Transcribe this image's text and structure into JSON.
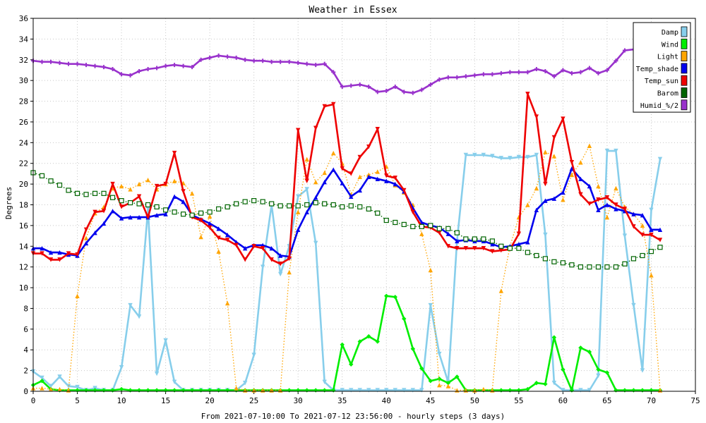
{
  "chart_data": {
    "type": "line",
    "title": "Weather in Essex",
    "xlabel": "From 2021-07-10:00 To 2021-07-12 23:56:00 - hourly steps (3 days)",
    "ylabel": "Degrees",
    "xlim": [
      0,
      75
    ],
    "ylim": [
      0,
      36
    ],
    "x_ticks": [
      0,
      5,
      10,
      15,
      20,
      25,
      30,
      35,
      40,
      45,
      50,
      55,
      60,
      65,
      70,
      75
    ],
    "y_ticks": [
      0,
      2,
      4,
      6,
      8,
      10,
      12,
      14,
      16,
      18,
      20,
      22,
      24,
      26,
      28,
      30,
      32,
      34,
      36
    ],
    "grid": true,
    "legend_position": "top-right",
    "series": [
      {
        "name": "Damp",
        "color": "#87ceeb",
        "style": "solid",
        "marker": "triangle-down",
        "x": [
          0,
          1,
          2,
          3,
          4,
          5,
          6,
          7,
          8,
          9,
          10,
          11,
          12,
          13,
          14,
          15,
          16,
          17,
          18,
          19,
          20,
          21,
          22,
          23,
          24,
          25,
          26,
          27,
          28,
          29,
          30,
          31,
          32,
          33,
          34,
          35,
          36,
          37,
          38,
          39,
          40,
          41,
          42,
          43,
          44,
          45,
          46,
          47,
          48,
          49,
          50,
          51,
          52,
          53,
          54,
          55,
          56,
          57,
          58,
          59,
          60,
          61,
          62,
          63,
          64,
          65,
          66,
          67,
          68,
          69,
          70,
          71
        ],
        "values": [
          1.9,
          1.3,
          0.5,
          1.4,
          0.5,
          0.4,
          0.1,
          0.3,
          0.1,
          0.1,
          2.3,
          8.3,
          7.2,
          17.6,
          1.7,
          4.9,
          0.9,
          0.1,
          0.1,
          0.1,
          0.1,
          0.1,
          0.1,
          0.1,
          0.8,
          3.5,
          12.0,
          18.0,
          11.3,
          14.0,
          18.8,
          19.5,
          14.3,
          0.9,
          0.1,
          0.1,
          0.1,
          0.1,
          0.1,
          0.1,
          0.1,
          0.1,
          0.1,
          0.1,
          0.1,
          8.3,
          3.6,
          0.9,
          14.5,
          22.8,
          22.8,
          22.8,
          22.7,
          22.5,
          22.5,
          22.6,
          22.6,
          22.8,
          15.1,
          0.8,
          0.1,
          0.1,
          0.1,
          0.1,
          1.5,
          23.2,
          23.2,
          15.0,
          8.3,
          2.0,
          17.5,
          22.4
        ]
      },
      {
        "name": "Wind",
        "color": "#00ee00",
        "style": "solid",
        "marker": "diamond",
        "x": [
          0,
          1,
          2,
          3,
          4,
          5,
          6,
          7,
          8,
          9,
          10,
          11,
          12,
          13,
          14,
          15,
          16,
          17,
          18,
          19,
          20,
          21,
          22,
          23,
          24,
          25,
          26,
          27,
          28,
          29,
          30,
          31,
          32,
          33,
          34,
          35,
          36,
          37,
          38,
          39,
          40,
          41,
          42,
          43,
          44,
          45,
          46,
          47,
          48,
          49,
          50,
          51,
          52,
          53,
          54,
          55,
          56,
          57,
          58,
          59,
          60,
          61,
          62,
          63,
          64,
          65,
          66,
          67,
          68,
          69,
          70,
          71
        ],
        "values": [
          0.6,
          1.0,
          0.2,
          0.1,
          0.1,
          0.1,
          0.1,
          0.1,
          0.1,
          0.1,
          0.2,
          0.1,
          0.1,
          0.1,
          0.1,
          0.1,
          0.1,
          0.1,
          0.1,
          0.1,
          0.1,
          0.1,
          0.1,
          0.1,
          0.1,
          0.1,
          0.1,
          0.1,
          0.1,
          0.1,
          0.1,
          0.1,
          0.1,
          0.1,
          0.1,
          4.5,
          2.6,
          4.8,
          5.3,
          4.8,
          9.2,
          9.1,
          7.0,
          4.1,
          2.2,
          1.0,
          1.2,
          0.8,
          1.4,
          0.1,
          0.1,
          0.1,
          0.1,
          0.1,
          0.1,
          0.1,
          0.2,
          0.8,
          0.7,
          5.2,
          2.1,
          0.1,
          4.2,
          3.8,
          2.1,
          1.8,
          0.1,
          0.1,
          0.1,
          0.1,
          0.1,
          0.1
        ]
      },
      {
        "name": "Light",
        "color": "#ffa500",
        "style": "dotted",
        "marker": "triangle-up",
        "x": [
          0,
          1,
          2,
          3,
          4,
          5,
          6,
          7,
          8,
          9,
          10,
          11,
          12,
          13,
          14,
          15,
          16,
          17,
          18,
          19,
          20,
          21,
          22,
          23,
          24,
          25,
          26,
          27,
          28,
          29,
          30,
          31,
          32,
          33,
          34,
          35,
          36,
          37,
          38,
          39,
          40,
          41,
          42,
          43,
          44,
          45,
          46,
          47,
          48,
          49,
          50,
          51,
          52,
          53,
          54,
          55,
          56,
          57,
          58,
          59,
          60,
          61,
          62,
          63,
          64,
          65,
          66,
          67,
          68,
          69,
          70,
          71
        ],
        "values": [
          0.3,
          0.3,
          0.2,
          0.2,
          0.1,
          9.2,
          14.8,
          17.2,
          17.8,
          19.6,
          19.8,
          19.5,
          20.0,
          20.4,
          19.5,
          20.0,
          20.3,
          20.1,
          19.1,
          14.9,
          16.9,
          13.5,
          8.5,
          0.3,
          0.1,
          0.1,
          0.1,
          0.1,
          0.1,
          11.5,
          17.3,
          22.4,
          20.2,
          21.1,
          23.0,
          22.0,
          19.0,
          20.7,
          20.9,
          21.2,
          21.7,
          19.9,
          19.2,
          18.0,
          15.2,
          11.7,
          0.6,
          0.5,
          0.1,
          0.1,
          0.1,
          0.2,
          0.1,
          9.7,
          14.0,
          16.8,
          18.0,
          19.6,
          23.1,
          22.7,
          18.5,
          20.9,
          22.1,
          23.7,
          19.8,
          16.8,
          19.6,
          17.8,
          17.1,
          16.0,
          11.2,
          0.1
        ]
      },
      {
        "name": "Temp_shade",
        "color": "#0000ee",
        "style": "solid",
        "marker": "triangle-up",
        "x": [
          0,
          1,
          2,
          3,
          4,
          5,
          6,
          7,
          8,
          9,
          10,
          11,
          12,
          13,
          14,
          15,
          16,
          17,
          18,
          19,
          20,
          21,
          22,
          23,
          24,
          25,
          26,
          27,
          28,
          29,
          30,
          31,
          32,
          33,
          34,
          35,
          36,
          37,
          38,
          39,
          40,
          41,
          42,
          43,
          44,
          45,
          46,
          47,
          48,
          49,
          50,
          51,
          52,
          53,
          54,
          55,
          56,
          57,
          58,
          59,
          60,
          61,
          62,
          63,
          64,
          65,
          66,
          67,
          68,
          69,
          70,
          71
        ],
        "values": [
          13.8,
          13.8,
          13.4,
          13.4,
          13.2,
          13.1,
          14.3,
          15.3,
          16.2,
          17.4,
          16.7,
          16.8,
          16.8,
          16.8,
          17.0,
          17.1,
          18.8,
          18.3,
          17.0,
          16.6,
          16.2,
          15.7,
          15.1,
          14.4,
          13.8,
          14.1,
          14.1,
          13.8,
          13.1,
          13.0,
          15.6,
          17.3,
          18.7,
          20.2,
          21.4,
          20.1,
          18.8,
          19.4,
          20.7,
          20.5,
          20.3,
          20.0,
          19.3,
          17.7,
          16.3,
          16.0,
          15.8,
          15.2,
          14.5,
          14.6,
          14.5,
          14.5,
          14.2,
          13.9,
          14.0,
          14.2,
          14.4,
          17.5,
          18.4,
          18.6,
          19.2,
          21.5,
          20.5,
          19.8,
          17.5,
          18.0,
          17.6,
          17.4,
          17.1,
          17.0,
          15.6,
          15.6
        ]
      },
      {
        "name": "Temp_sun",
        "color": "#ee0000",
        "style": "solid",
        "marker": "triangle-down",
        "x": [
          0,
          1,
          2,
          3,
          4,
          5,
          6,
          7,
          8,
          9,
          10,
          11,
          12,
          13,
          14,
          15,
          16,
          17,
          18,
          19,
          20,
          21,
          22,
          23,
          24,
          25,
          26,
          27,
          28,
          29,
          30,
          31,
          32,
          33,
          34,
          35,
          36,
          37,
          38,
          39,
          40,
          41,
          42,
          43,
          44,
          45,
          46,
          47,
          48,
          49,
          50,
          51,
          52,
          53,
          54,
          55,
          56,
          57,
          58,
          59,
          60,
          61,
          62,
          63,
          64,
          65,
          66,
          67,
          68,
          69,
          70,
          71
        ],
        "values": [
          13.3,
          13.3,
          12.7,
          12.7,
          13.3,
          13.2,
          15.6,
          17.3,
          17.4,
          20.0,
          17.8,
          18.2,
          18.8,
          16.8,
          19.8,
          20.0,
          23.0,
          19.3,
          16.8,
          16.5,
          15.8,
          14.8,
          14.6,
          14.1,
          12.7,
          14.0,
          13.8,
          12.7,
          12.3,
          12.8,
          25.2,
          20.3,
          25.4,
          27.5,
          27.7,
          21.5,
          21.0,
          22.6,
          23.6,
          25.3,
          20.8,
          20.6,
          19.4,
          17.3,
          15.9,
          15.8,
          15.3,
          14.0,
          13.8,
          13.8,
          13.8,
          13.8,
          13.5,
          13.6,
          13.7,
          15.2,
          28.7,
          26.5,
          20.0,
          24.5,
          26.3,
          22.1,
          19.0,
          18.1,
          18.5,
          18.7,
          18.0,
          17.6,
          15.9,
          15.1,
          15.1,
          14.6
        ]
      },
      {
        "name": "Barom",
        "color": "#006400",
        "style": "dotted",
        "marker": "square",
        "x": [
          0,
          1,
          2,
          3,
          4,
          5,
          6,
          7,
          8,
          9,
          10,
          11,
          12,
          13,
          14,
          15,
          16,
          17,
          18,
          19,
          20,
          21,
          22,
          23,
          24,
          25,
          26,
          27,
          28,
          29,
          30,
          31,
          32,
          33,
          34,
          35,
          36,
          37,
          38,
          39,
          40,
          41,
          42,
          43,
          44,
          45,
          46,
          47,
          48,
          49,
          50,
          51,
          52,
          53,
          54,
          55,
          56,
          57,
          58,
          59,
          60,
          61,
          62,
          63,
          64,
          65,
          66,
          67,
          68,
          69,
          70,
          71
        ],
        "values": [
          21.1,
          20.8,
          20.3,
          19.9,
          19.4,
          19.1,
          19.0,
          19.1,
          19.1,
          18.7,
          18.4,
          18.2,
          18.1,
          18.0,
          17.8,
          17.5,
          17.3,
          17.1,
          17.0,
          17.2,
          17.3,
          17.6,
          17.8,
          18.1,
          18.3,
          18.4,
          18.3,
          18.1,
          17.9,
          17.9,
          17.9,
          18.0,
          18.2,
          18.1,
          18.0,
          17.8,
          17.9,
          17.8,
          17.6,
          17.2,
          16.5,
          16.3,
          16.1,
          15.9,
          15.9,
          16.0,
          15.7,
          15.7,
          15.3,
          14.7,
          14.7,
          14.7,
          14.5,
          14.0,
          13.8,
          13.8,
          13.4,
          13.1,
          12.8,
          12.5,
          12.4,
          12.2,
          12.0,
          12.0,
          12.0,
          12.0,
          12.0,
          12.3,
          12.8,
          13.1,
          13.5,
          13.9
        ]
      },
      {
        "name": "Humid_%/2",
        "color": "#9932cc",
        "style": "solid",
        "marker": "cross",
        "x": [
          0,
          1,
          2,
          3,
          4,
          5,
          6,
          7,
          8,
          9,
          10,
          11,
          12,
          13,
          14,
          15,
          16,
          17,
          18,
          19,
          20,
          21,
          22,
          23,
          24,
          25,
          26,
          27,
          28,
          29,
          30,
          31,
          32,
          33,
          34,
          35,
          36,
          37,
          38,
          39,
          40,
          41,
          42,
          43,
          44,
          45,
          46,
          47,
          48,
          49,
          50,
          51,
          52,
          53,
          54,
          55,
          56,
          57,
          58,
          59,
          60,
          61,
          62,
          63,
          64,
          65,
          66,
          67,
          68
        ],
        "values": [
          31.9,
          31.8,
          31.8,
          31.7,
          31.6,
          31.6,
          31.5,
          31.4,
          31.3,
          31.1,
          30.6,
          30.5,
          30.9,
          31.1,
          31.2,
          31.4,
          31.5,
          31.4,
          31.3,
          32.0,
          32.2,
          32.4,
          32.3,
          32.2,
          32.0,
          31.9,
          31.9,
          31.8,
          31.8,
          31.8,
          31.7,
          31.6,
          31.5,
          31.6,
          30.8,
          29.4,
          29.5,
          29.6,
          29.4,
          28.9,
          29.0,
          29.4,
          28.9,
          28.8,
          29.1,
          29.6,
          30.1,
          30.3,
          30.3,
          30.4,
          30.5,
          30.6,
          30.6,
          30.7,
          30.8,
          30.8,
          30.8,
          31.1,
          30.9,
          30.4,
          31.0,
          30.7,
          30.8,
          31.2,
          30.7,
          31.0,
          31.9,
          32.9,
          33.0
        ]
      }
    ]
  }
}
